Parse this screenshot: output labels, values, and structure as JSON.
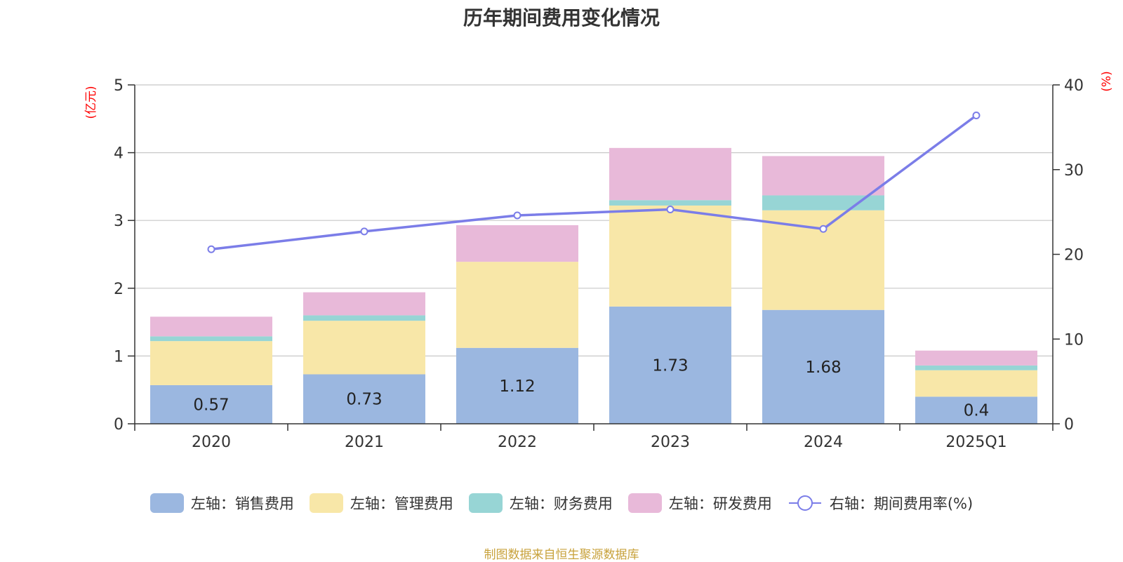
{
  "chart_data": {
    "type": "bar",
    "title": "历年期间费用变化情况",
    "categories": [
      "2020",
      "2021",
      "2022",
      "2023",
      "2024",
      "2025Q1"
    ],
    "y_left": {
      "unit_label": "(亿元)",
      "ylim": [
        0,
        5
      ],
      "ticks": [
        "0",
        "1",
        "2",
        "3",
        "4",
        "5"
      ]
    },
    "y_right": {
      "unit_label": "(%)",
      "ylim": [
        0,
        40
      ],
      "ticks": [
        "0",
        "10",
        "20",
        "30",
        "40"
      ]
    },
    "series": [
      {
        "name": "左轴：销售费用",
        "type": "bar",
        "axis": "left",
        "color": "#9bb7e0",
        "values": [
          0.57,
          0.73,
          1.12,
          1.73,
          1.68,
          0.4
        ],
        "labels": [
          "0.57",
          "0.73",
          "1.12",
          "1.73",
          "1.68",
          "0.4"
        ]
      },
      {
        "name": "左轴：管理费用",
        "type": "bar",
        "axis": "left",
        "color": "#f8e7a8",
        "values": [
          0.65,
          0.79,
          1.27,
          1.49,
          1.47,
          0.39
        ]
      },
      {
        "name": "左轴：财务费用",
        "type": "bar",
        "axis": "left",
        "color": "#97d5d5",
        "values": [
          0.07,
          0.08,
          0.0,
          0.08,
          0.22,
          0.07
        ]
      },
      {
        "name": "左轴：研发费用",
        "type": "bar",
        "axis": "left",
        "color": "#e8b9d9",
        "values": [
          0.29,
          0.34,
          0.54,
          0.77,
          0.58,
          0.22
        ]
      },
      {
        "name": "右轴：期间费用率(%)",
        "type": "line",
        "axis": "right",
        "color": "#7b7de8",
        "values": [
          20.6,
          22.7,
          24.6,
          25.3,
          23.0,
          36.4
        ]
      }
    ],
    "grid": true,
    "legend_position": "bottom",
    "source": "制图数据来自恒生聚源数据库"
  }
}
